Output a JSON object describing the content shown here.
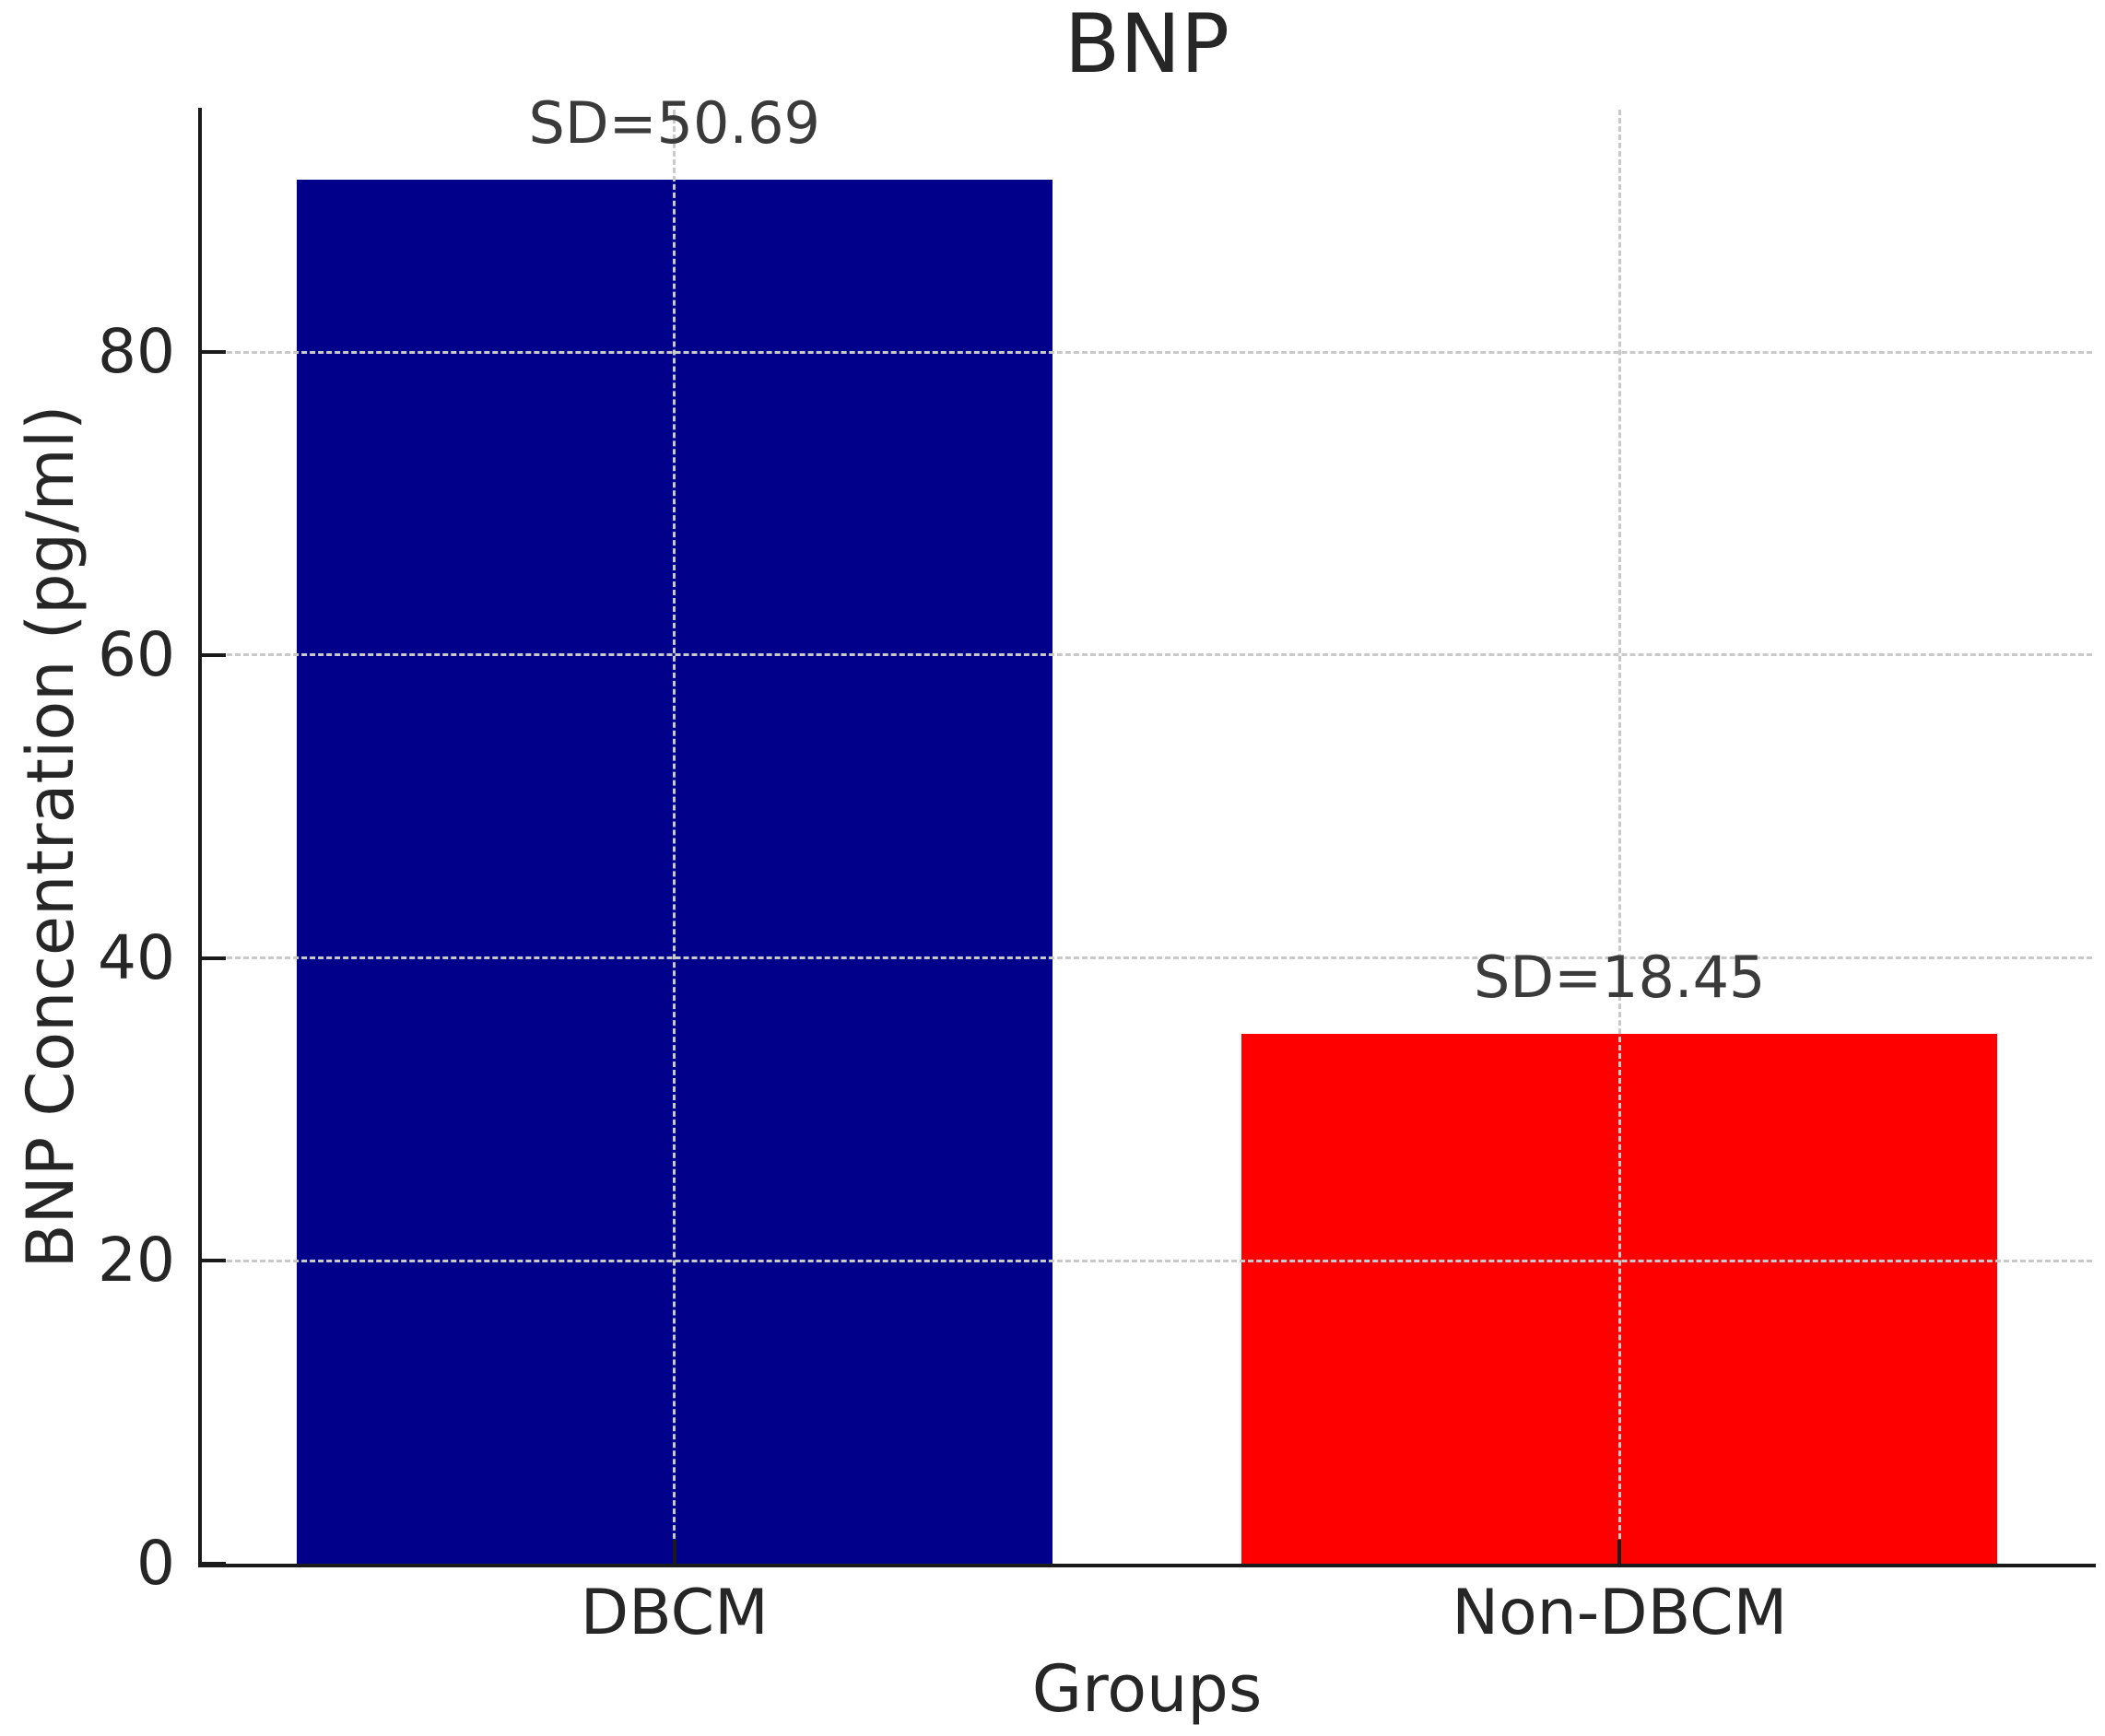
{
  "chart_data": {
    "type": "bar",
    "title": "BNP",
    "xlabel": "Groups",
    "ylabel": "BNP Concentration (pg/ml)",
    "categories": [
      "DBCM",
      "Non-DBCM"
    ],
    "series": [
      {
        "name": "BNP Concentration (pg/ml)",
        "values": [
          91.4,
          35.0
        ]
      }
    ],
    "bar_colors": [
      "#00008B",
      "#FF0000"
    ],
    "annotations": [
      {
        "category": "DBCM",
        "text": "SD=50.69"
      },
      {
        "category": "Non-DBCM",
        "text": "SD=18.45"
      }
    ],
    "sd_values": [
      50.69,
      18.45
    ],
    "ylim": [
      0,
      96
    ],
    "yticks": [
      0,
      20,
      40,
      60,
      80
    ],
    "grid": true,
    "grid_style": "dashed",
    "legend_position": "none",
    "colors": {
      "bar_dbcm": "#00008B",
      "bar_non_dbcm": "#FF0000",
      "grid": "#C9C9C9",
      "spine": "#1A1A1A",
      "text": "#262626",
      "background": "#FFFFFF"
    }
  }
}
